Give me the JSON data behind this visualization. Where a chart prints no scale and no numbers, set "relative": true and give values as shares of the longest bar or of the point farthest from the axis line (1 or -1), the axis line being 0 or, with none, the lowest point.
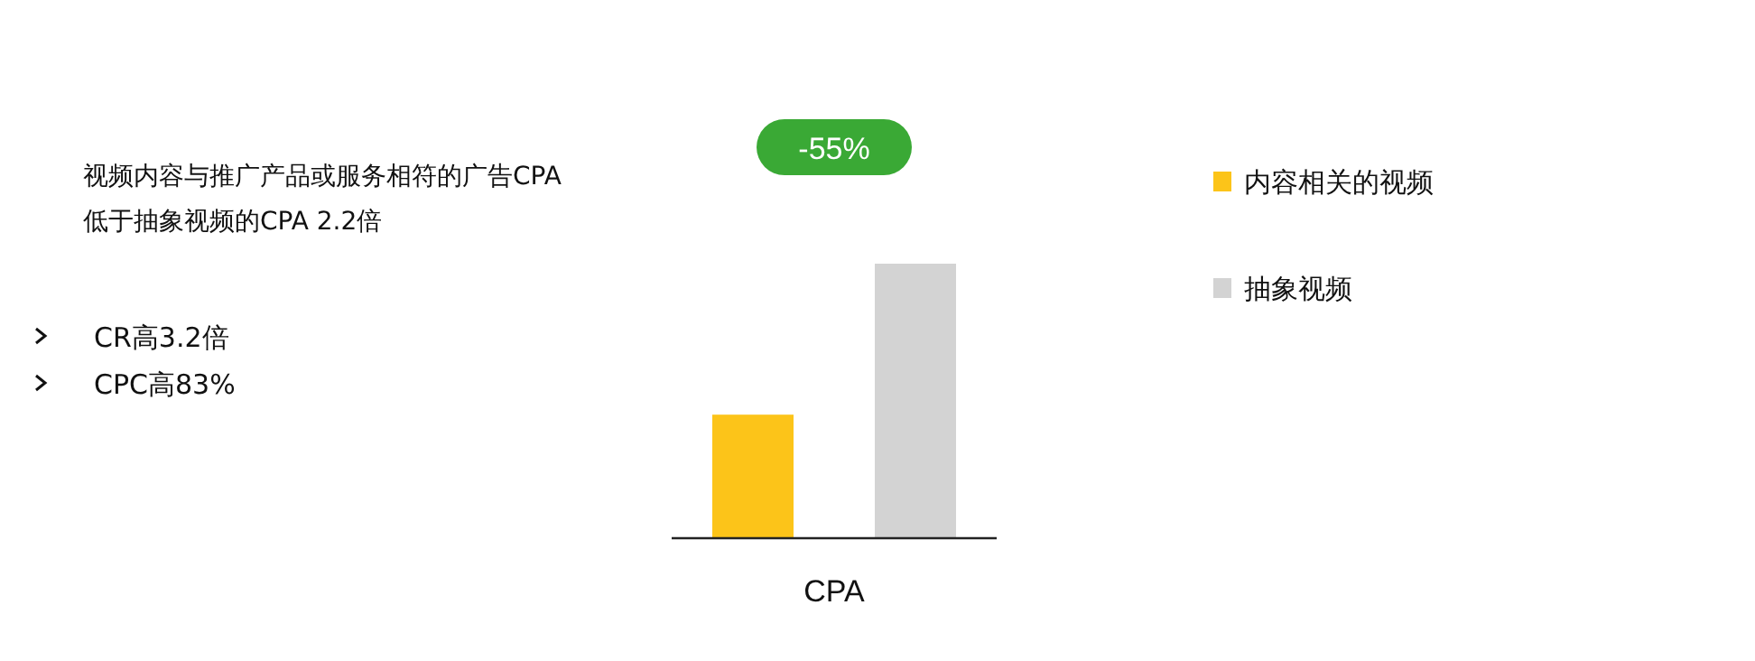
{
  "chart_data": {
    "type": "bar",
    "relative": true,
    "categories": [
      "CPA"
    ],
    "series": [
      {
        "name": "内容相关的视频",
        "color": "#fcc419",
        "values": [
          0.45
        ]
      },
      {
        "name": "抽象视频",
        "color": "#d3d3d3",
        "values": [
          1
        ]
      }
    ],
    "legend": "right",
    "annotations": [
      "视频内容与推广产品或服务相符的广告CPA\n低于抽象视频的CPA 2.2倍",
      "CR高3.2倍",
      "CPC高83%",
      "-55%"
    ]
  }
}
